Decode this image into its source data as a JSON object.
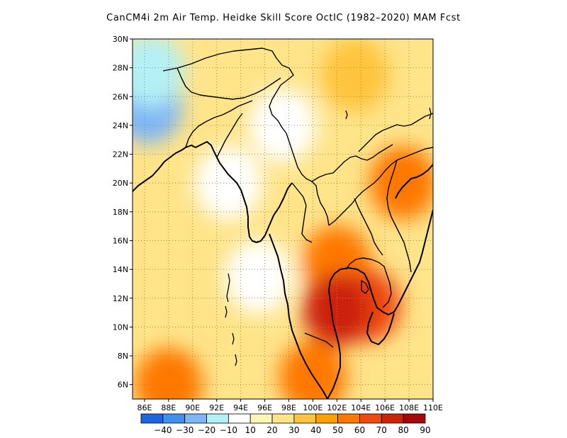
{
  "title": "CanCM4i  2m Air Temp. Heidke Skill Score OctIC (1982–2020) MAM Fcst",
  "map": {
    "lon_range": [
      85,
      110
    ],
    "lat_range": [
      5,
      30
    ],
    "lon_ticks": [
      "86E",
      "88E",
      "90E",
      "92E",
      "94E",
      "96E",
      "98E",
      "100E",
      "102E",
      "104E",
      "106E",
      "108E",
      "110E"
    ],
    "lat_ticks": [
      "6N",
      "8N",
      "10N",
      "12N",
      "14N",
      "16N",
      "18N",
      "20N",
      "22N",
      "24N",
      "26N",
      "28N",
      "30N"
    ],
    "grid": "dotted",
    "field": "Heidke skill score",
    "skill_zones": [
      {
        "lon": 86.3,
        "lat": 25.3,
        "value": -25
      },
      {
        "lon": 86.5,
        "lat": 27.8,
        "value": -15
      },
      {
        "lon": 95.5,
        "lat": 13.5,
        "value": 5
      },
      {
        "lon": 93.0,
        "lat": 20.0,
        "value": 5
      },
      {
        "lon": 97.5,
        "lat": 24.0,
        "value": 5
      },
      {
        "lon": 103.5,
        "lat": 27.5,
        "value": 35
      },
      {
        "lon": 102.0,
        "lat": 14.5,
        "value": 55
      },
      {
        "lon": 104.5,
        "lat": 11.5,
        "value": 65
      },
      {
        "lon": 102.0,
        "lat": 11.2,
        "value": 70
      },
      {
        "lon": 107.5,
        "lat": 20.0,
        "value": 55
      },
      {
        "lon": 100.0,
        "lat": 6.5,
        "value": 55
      },
      {
        "lon": 88.0,
        "lat": 6.0,
        "value": 55
      }
    ]
  },
  "colorbar": {
    "labels": [
      "−40",
      "−30",
      "−20",
      "−10",
      "10",
      "20",
      "30",
      "40",
      "50",
      "60",
      "70",
      "80",
      "90"
    ],
    "colors": [
      "#1d66e0",
      "#3f8ff0",
      "#7db5f5",
      "#b4f0f5",
      "#ffffff",
      "#fff6b5",
      "#ffe48a",
      "#ffc43c",
      "#ffa000",
      "#ff7800",
      "#ee4a10",
      "#cc2208",
      "#a40808"
    ]
  }
}
